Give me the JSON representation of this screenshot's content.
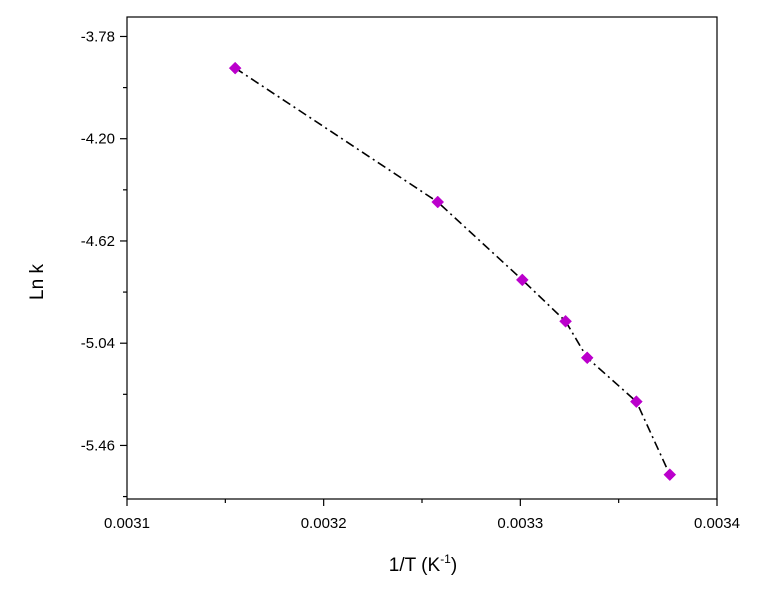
{
  "chart_data": {
    "type": "line",
    "xlabel": "1/T (K",
    "xlabel_sup": "-1",
    "xlabel_close": ")",
    "ylabel": "Ln k",
    "xlim": [
      0.0031,
      0.0034
    ],
    "ylim": [
      -5.68,
      -3.7
    ],
    "xticks": [
      0.0031,
      0.0032,
      0.0033,
      0.0034
    ],
    "xtick_labels": [
      "0.0031",
      "0.0032",
      "0.0033",
      "0.0034"
    ],
    "yticks": [
      -3.78,
      -4.2,
      -4.62,
      -5.04,
      -5.46
    ],
    "ytick_labels": [
      "-3.78",
      "-4.20",
      "-4.62",
      "-5.04",
      "-5.46"
    ],
    "grid": false,
    "legend": false,
    "series": [
      {
        "x": [
          0.003155,
          0.003258,
          0.003301,
          0.003323,
          0.003334,
          0.003359,
          0.003376
        ],
        "y": [
          -3.91,
          -4.46,
          -4.78,
          -4.95,
          -5.1,
          -5.28,
          -5.58
        ],
        "marker": "diamond",
        "marker_color": "#bb00cc",
        "line_color": "#000000",
        "line_style": "dash-dot"
      }
    ]
  }
}
